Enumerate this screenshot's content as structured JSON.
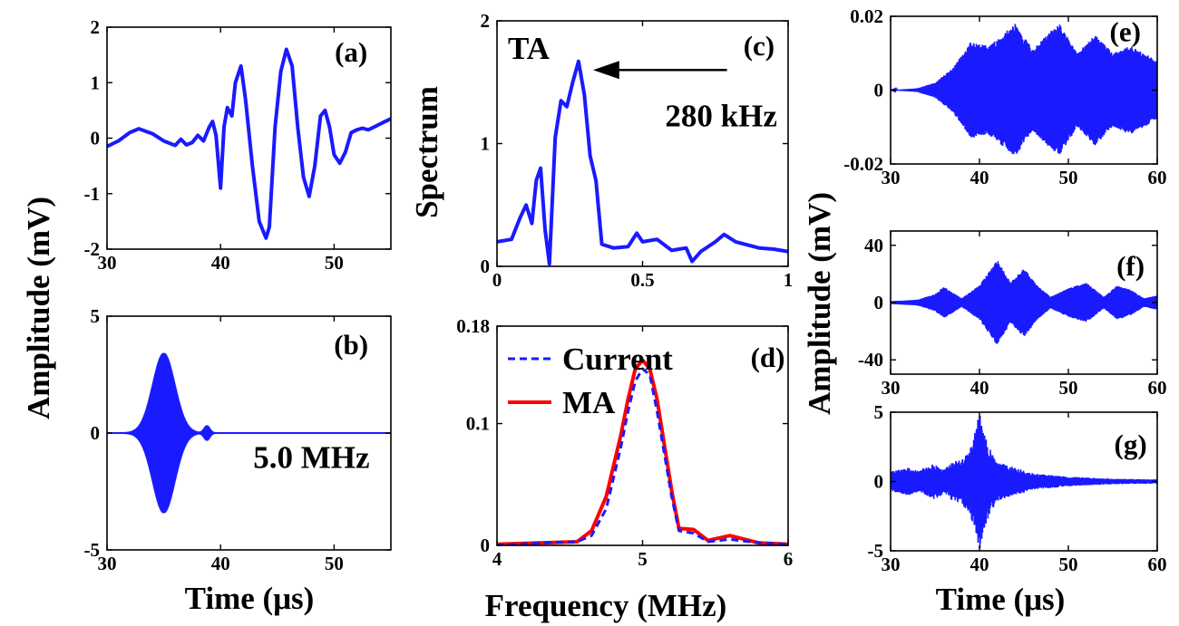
{
  "figure": {
    "ylabel_left": "Amplitude (mV)",
    "ylabel_right": "Amplitude (mV)",
    "xlabel_left": "Time (μs)",
    "xlabel_mid": "Frequency (MHz)",
    "xlabel_right": "Time (μs)",
    "ylabel_mid": "Spectrum"
  },
  "colors": {
    "trace": "#1a1aff",
    "ma": "#ff0000",
    "axis": "#000000"
  },
  "chart_data": [
    {
      "id": "a",
      "type": "line",
      "panel_label": "(a)",
      "xlim": [
        30,
        55
      ],
      "ylim": [
        -2,
        2
      ],
      "xticks": [
        "30",
        "40",
        "50"
      ],
      "xtick_values": [
        30,
        40,
        50
      ],
      "yticks": [
        "2",
        "1",
        "0",
        "-1",
        "-2"
      ],
      "ytick_values": [
        2,
        1,
        0,
        -1,
        -2
      ],
      "series": [
        {
          "x": [
            30,
            31,
            32,
            32.8,
            34,
            35,
            36,
            36.5,
            37,
            37.5,
            38,
            38.5,
            39,
            39.3,
            39.6,
            40,
            40.3,
            40.6,
            41,
            41.3,
            41.8,
            42.2,
            42.8,
            43.4,
            44,
            44.3,
            44.8,
            45.3,
            45.8,
            46.3,
            46.8,
            47.3,
            47.8,
            48.3,
            48.8,
            49.2,
            49.6,
            50,
            50.5,
            51,
            51.5,
            52,
            52.5,
            53,
            53.5,
            54,
            54.5,
            55
          ],
          "y": [
            -0.15,
            -0.05,
            0.1,
            0.17,
            0.08,
            -0.05,
            -0.13,
            -0.02,
            -0.12,
            -0.08,
            0.05,
            -0.05,
            0.2,
            0.3,
            0.05,
            -0.9,
            0.2,
            0.55,
            0.4,
            1.0,
            1.3,
            0.7,
            -0.5,
            -1.5,
            -1.8,
            -1.6,
            0.2,
            1.2,
            1.6,
            1.3,
            0.2,
            -0.7,
            -1.05,
            -0.5,
            0.4,
            0.5,
            0.2,
            -0.3,
            -0.45,
            -0.25,
            0.1,
            0.15,
            0.18,
            0.15,
            0.2,
            0.25,
            0.3,
            0.35
          ]
        }
      ]
    },
    {
      "id": "b",
      "type": "line",
      "panel_label": "(b)",
      "annotation": "5.0 MHz",
      "xlim": [
        30,
        55
      ],
      "ylim": [
        -5,
        5
      ],
      "xticks": [
        "30",
        "40",
        "50"
      ],
      "xtick_values": [
        30,
        40,
        50
      ],
      "yticks": [
        "5",
        "0",
        "-5"
      ],
      "ytick_values": [
        5,
        0,
        -5
      ],
      "burst": {
        "center": 35,
        "width": 1.4,
        "amplitude": 3.4,
        "frequency_MHz": 5.0
      },
      "small_burst": {
        "center": 38.8,
        "amplitude": 0.3
      }
    },
    {
      "id": "c",
      "type": "line",
      "panel_label": "(c)",
      "annotation": "280 kHz",
      "inset_text": "TA",
      "xlim": [
        0,
        1
      ],
      "ylim": [
        0,
        2
      ],
      "xticks": [
        "0",
        "0.5",
        "1"
      ],
      "xtick_values": [
        0,
        0.5,
        1
      ],
      "yticks": [
        "2",
        "1",
        "0"
      ],
      "ytick_values": [
        2,
        1,
        0
      ],
      "series": [
        {
          "x": [
            0,
            0.05,
            0.08,
            0.1,
            0.12,
            0.135,
            0.15,
            0.165,
            0.18,
            0.2,
            0.22,
            0.24,
            0.26,
            0.28,
            0.3,
            0.32,
            0.34,
            0.36,
            0.4,
            0.45,
            0.48,
            0.5,
            0.55,
            0.6,
            0.65,
            0.67,
            0.7,
            0.75,
            0.78,
            0.82,
            0.9,
            0.95,
            1.0
          ],
          "y": [
            0.2,
            0.22,
            0.4,
            0.5,
            0.35,
            0.7,
            0.8,
            0.3,
            0.02,
            1.05,
            1.35,
            1.3,
            1.5,
            1.67,
            1.4,
            0.9,
            0.7,
            0.18,
            0.15,
            0.16,
            0.27,
            0.2,
            0.22,
            0.13,
            0.15,
            0.04,
            0.12,
            0.2,
            0.26,
            0.2,
            0.15,
            0.14,
            0.12
          ]
        }
      ]
    },
    {
      "id": "d",
      "type": "line",
      "panel_label": "(d)",
      "xlim": [
        4,
        6
      ],
      "ylim": [
        0,
        0.18
      ],
      "xticks": [
        "4",
        "5",
        "6"
      ],
      "xtick_values": [
        4,
        5,
        6
      ],
      "yticks": [
        "0.18",
        "0.1",
        "0"
      ],
      "ytick_values": [
        0.18,
        0.1,
        0
      ],
      "legend": [
        "Current",
        "MA"
      ],
      "series": [
        {
          "name": "Current",
          "style": "dashed",
          "x": [
            4,
            4.3,
            4.55,
            4.65,
            4.75,
            4.85,
            4.9,
            4.95,
            5.0,
            5.05,
            5.1,
            5.2,
            5.25,
            5.35,
            5.45,
            5.6,
            5.8,
            6.0
          ],
          "y": [
            0.0,
            0.002,
            0.003,
            0.008,
            0.03,
            0.08,
            0.11,
            0.135,
            0.145,
            0.14,
            0.11,
            0.04,
            0.012,
            0.01,
            0.003,
            0.005,
            0.002,
            0.001
          ]
        },
        {
          "name": "MA",
          "style": "solid",
          "x": [
            4,
            4.3,
            4.55,
            4.65,
            4.75,
            4.85,
            4.9,
            4.95,
            5.0,
            5.05,
            5.1,
            5.2,
            5.25,
            5.35,
            5.45,
            5.6,
            5.8,
            6.0
          ],
          "y": [
            0.001,
            0.002,
            0.003,
            0.012,
            0.04,
            0.09,
            0.12,
            0.145,
            0.152,
            0.145,
            0.12,
            0.045,
            0.014,
            0.013,
            0.004,
            0.008,
            0.002,
            0.001
          ]
        }
      ]
    },
    {
      "id": "e",
      "type": "line",
      "panel_label": "(e)",
      "xlim": [
        30,
        60
      ],
      "ylim": [
        -0.02,
        0.02
      ],
      "xticks": [
        "30",
        "40",
        "50",
        "60"
      ],
      "xtick_values": [
        30,
        40,
        50,
        60
      ],
      "yticks": [
        "0.02",
        "0",
        "-0.02"
      ],
      "ytick_values": [
        0.02,
        0,
        -0.02
      ],
      "envelope": {
        "x": [
          30,
          33,
          35,
          37,
          39,
          41,
          44,
          46,
          48,
          49,
          51,
          53,
          55,
          57,
          60
        ],
        "y": [
          0,
          0.0005,
          0.002,
          0.006,
          0.013,
          0.012,
          0.018,
          0.011,
          0.016,
          0.018,
          0.01,
          0.015,
          0.01,
          0.012,
          0.008
        ]
      }
    },
    {
      "id": "f",
      "type": "line",
      "panel_label": "(f)",
      "xlim": [
        30,
        60
      ],
      "ylim": [
        -50,
        50
      ],
      "xticks": [
        "30",
        "40",
        "50",
        "60"
      ],
      "xtick_values": [
        30,
        40,
        50,
        60
      ],
      "yticks": [
        "40",
        "0",
        "-40"
      ],
      "ytick_values": [
        40,
        0,
        -40
      ],
      "envelope": {
        "x": [
          30,
          33,
          35,
          36,
          38,
          40,
          42,
          43.5,
          45,
          46.5,
          48,
          50,
          52,
          54,
          55.5,
          57,
          58.5,
          60
        ],
        "y": [
          1,
          2,
          6,
          11,
          3,
          12,
          30,
          14,
          24,
          12,
          4,
          10,
          14,
          4,
          12,
          9,
          3,
          5
        ]
      }
    },
    {
      "id": "g",
      "type": "line",
      "panel_label": "(g)",
      "xlim": [
        30,
        60
      ],
      "ylim": [
        -5,
        5
      ],
      "xticks": [
        "30",
        "40",
        "50",
        "60"
      ],
      "xtick_values": [
        30,
        40,
        50,
        60
      ],
      "yticks": [
        "5",
        "0",
        "-5"
      ],
      "ytick_values": [
        5,
        0,
        -5
      ],
      "envelope": {
        "x": [
          30,
          32,
          33,
          35,
          36,
          37,
          38,
          39,
          40,
          41,
          42,
          44,
          46,
          50,
          55,
          60
        ],
        "y": [
          0.7,
          1.0,
          0.8,
          1.3,
          0.9,
          1.4,
          1.6,
          2.5,
          5.0,
          2.6,
          1.4,
          1.0,
          0.6,
          0.35,
          0.2,
          0.15
        ]
      }
    }
  ]
}
